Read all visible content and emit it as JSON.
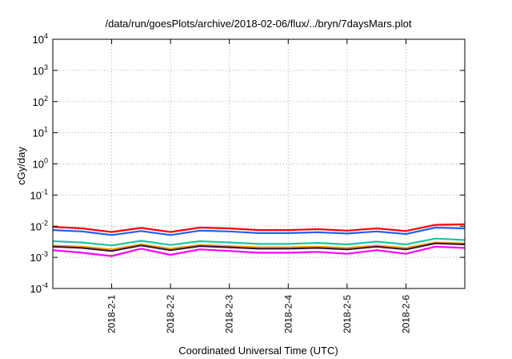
{
  "chart_data": {
    "type": "line",
    "title": "/data/run/goesPlots/archive/2018-02-06/flux/../bryn/7daysMars.plot",
    "xlabel": "Coordinated Universal Time (UTC)",
    "ylabel": "cGy/day",
    "yscale": "log",
    "ylim": [
      0.0001,
      10000
    ],
    "y_tick_labels": [
      {
        "base": "10",
        "exp": "-4"
      },
      {
        "base": "10",
        "exp": "-3"
      },
      {
        "base": "10",
        "exp": "-2"
      },
      {
        "base": "10",
        "exp": "-1"
      },
      {
        "base": "10",
        "exp": "0"
      },
      {
        "base": "10",
        "exp": "1"
      },
      {
        "base": "10",
        "exp": "2"
      },
      {
        "base": "10",
        "exp": "3"
      },
      {
        "base": "10",
        "exp": "4"
      }
    ],
    "x_tick_labels": [
      "2018-2-1",
      "2018-2-2",
      "2018-2-3",
      "2018-2-4",
      "2018-2-5",
      "2018-2-6"
    ],
    "xlim": [
      "2018-01-31T00:00",
      "2018-02-07T00:00"
    ],
    "x_ticks": [
      "2018-02-01T00:00",
      "2018-02-02T00:00",
      "2018-02-03T00:00",
      "2018-02-04T00:00",
      "2018-02-05T00:00",
      "2018-02-06T00:00"
    ],
    "grid": true,
    "x": [
      "2018-01-31T00:00",
      "2018-01-31T12:00",
      "2018-02-01T00:00",
      "2018-02-01T12:00",
      "2018-02-02T00:00",
      "2018-02-02T12:00",
      "2018-02-03T00:00",
      "2018-02-03T12:00",
      "2018-02-04T00:00",
      "2018-02-04T12:00",
      "2018-02-05T00:00",
      "2018-02-05T12:00",
      "2018-02-06T00:00",
      "2018-02-06T12:00",
      "2018-02-07T00:00"
    ],
    "series": [
      {
        "color": "#ff0000",
        "values": [
          0.0095,
          0.0085,
          0.0065,
          0.0088,
          0.0065,
          0.009,
          0.0085,
          0.0075,
          0.0075,
          0.008,
          0.0072,
          0.0085,
          0.007,
          0.011,
          0.0115
        ]
      },
      {
        "color": "#1f5fff",
        "values": [
          0.0075,
          0.0068,
          0.0052,
          0.007,
          0.0052,
          0.0072,
          0.0068,
          0.006,
          0.006,
          0.0064,
          0.0058,
          0.0068,
          0.0056,
          0.009,
          0.0085
        ]
      },
      {
        "color": "#22c3a0",
        "values": [
          0.0033,
          0.003,
          0.0024,
          0.0034,
          0.0025,
          0.0033,
          0.003,
          0.0027,
          0.0027,
          0.0029,
          0.0026,
          0.0032,
          0.0026,
          0.004,
          0.0036
        ]
      },
      {
        "color": "#ffa500",
        "values": [
          0.0024,
          0.0022,
          0.0018,
          0.0026,
          0.0019,
          0.0025,
          0.0023,
          0.0021,
          0.0021,
          0.0022,
          0.002,
          0.0024,
          0.002,
          0.003,
          0.0028
        ]
      },
      {
        "color": "#3a1a3a",
        "values": [
          0.0022,
          0.002,
          0.0016,
          0.0024,
          0.0017,
          0.0023,
          0.0021,
          0.0019,
          0.0019,
          0.002,
          0.0018,
          0.0022,
          0.0018,
          0.0028,
          0.0026
        ]
      },
      {
        "color": "#ff00ff",
        "values": [
          0.0017,
          0.0014,
          0.0011,
          0.0019,
          0.0012,
          0.0018,
          0.0016,
          0.0014,
          0.0014,
          0.0015,
          0.0013,
          0.0017,
          0.0013,
          0.0022,
          0.002
        ]
      }
    ]
  }
}
